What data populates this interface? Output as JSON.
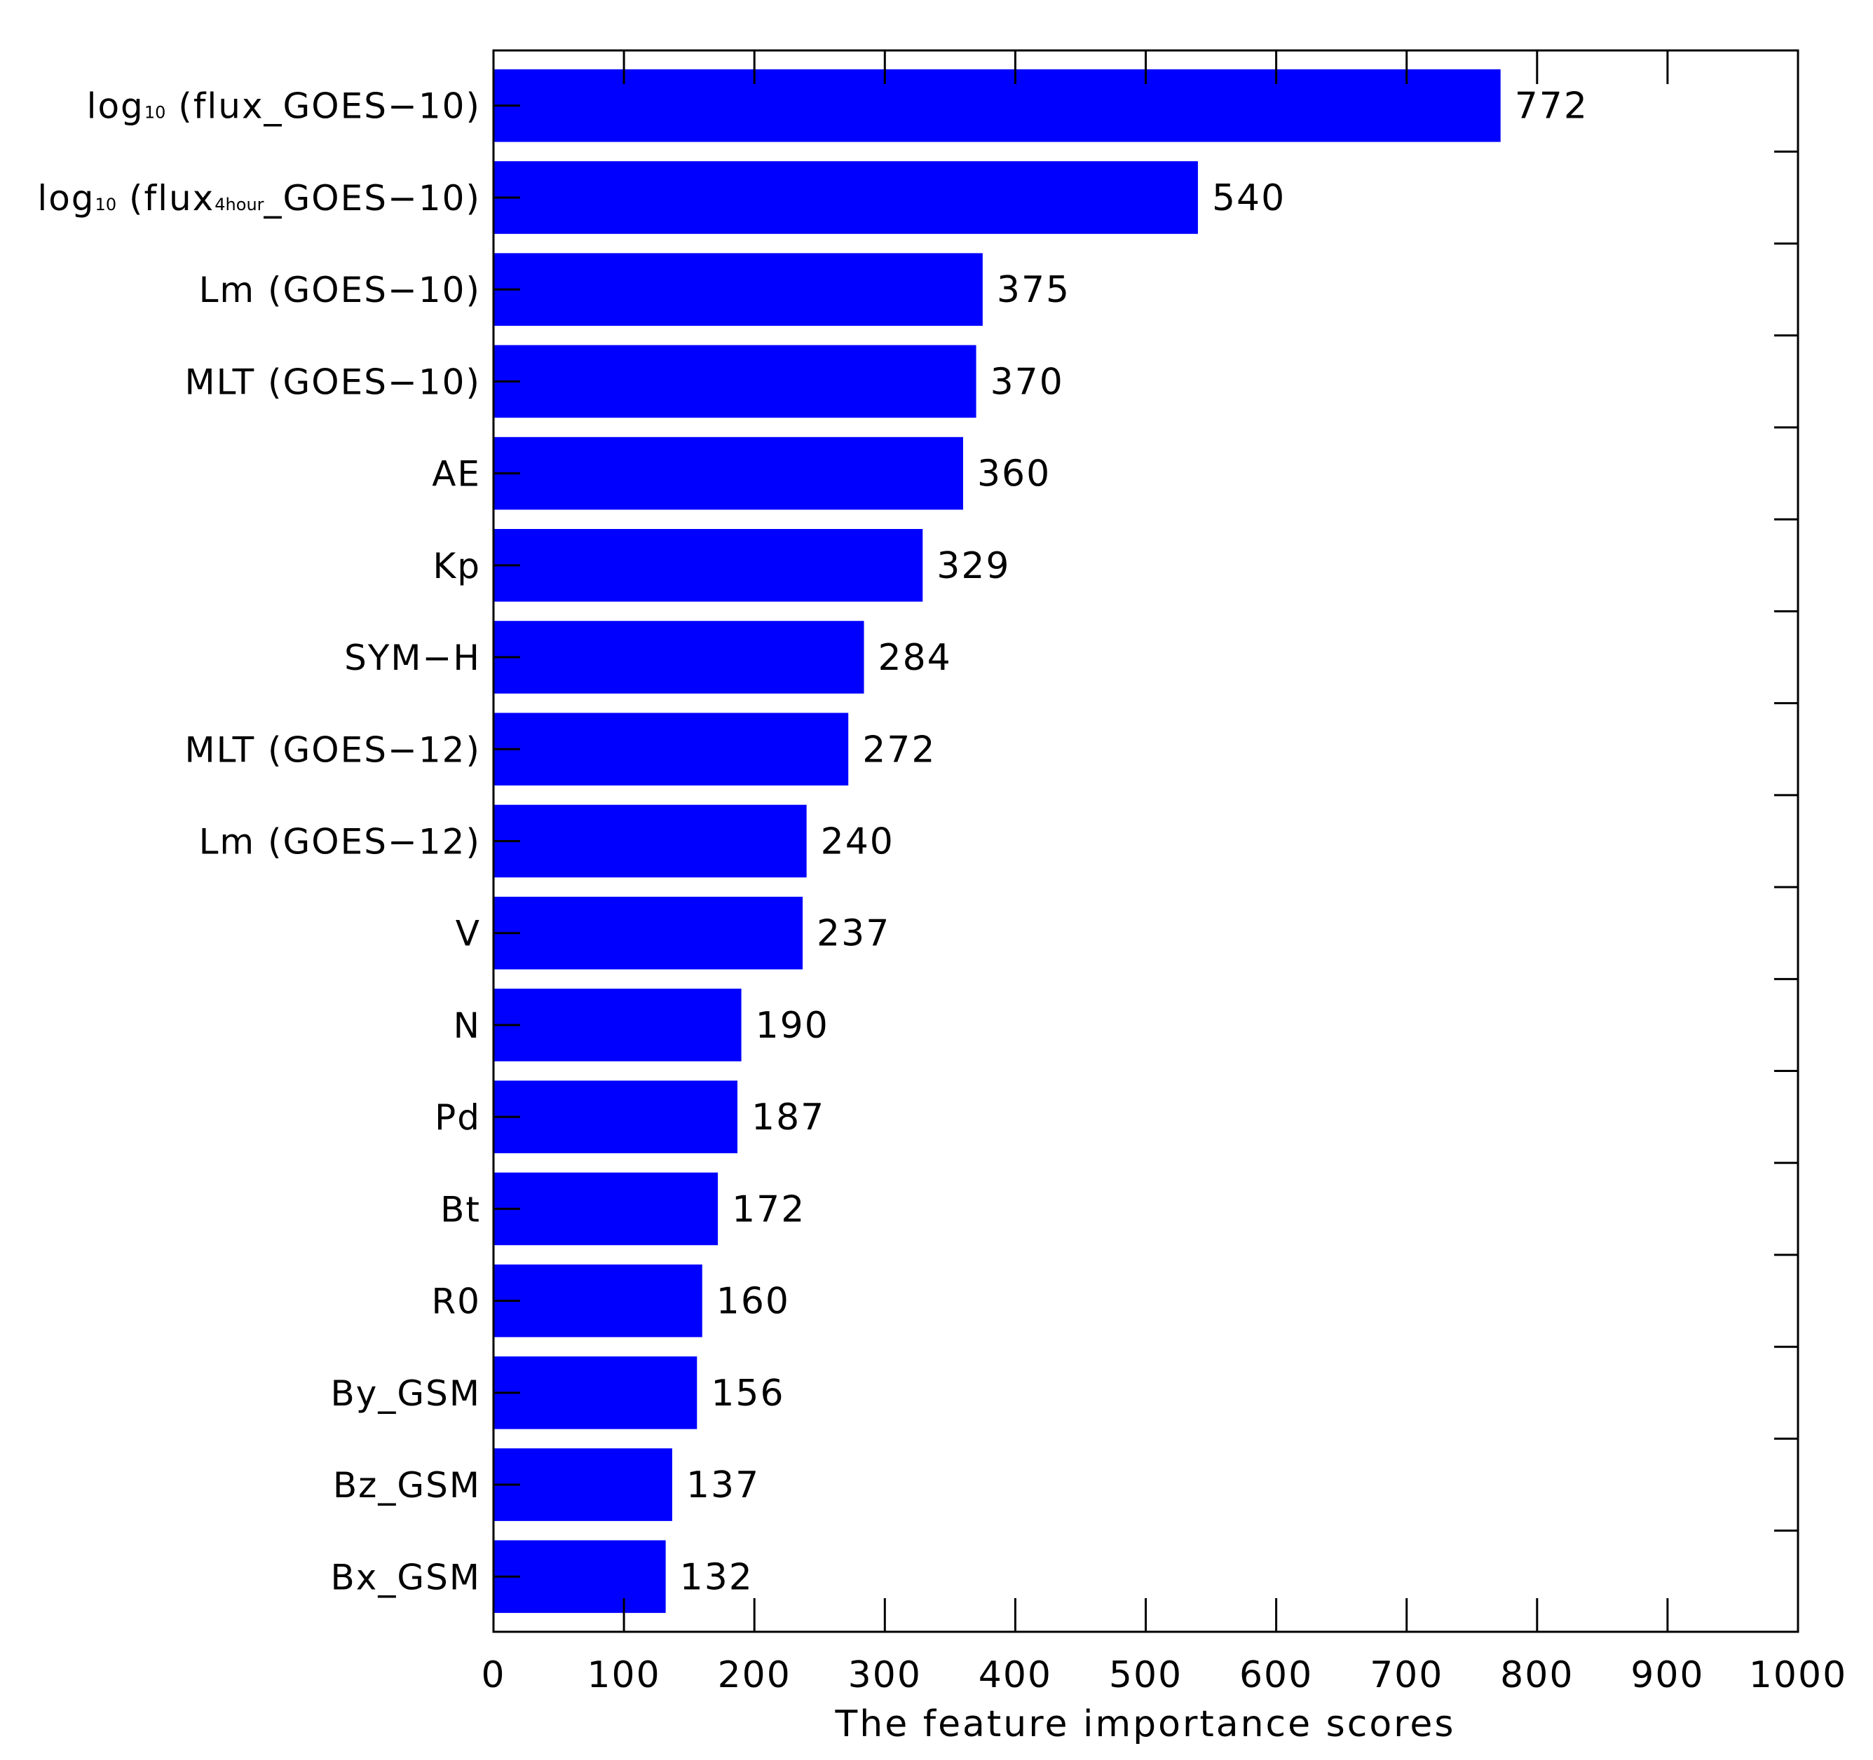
{
  "chart_data": {
    "type": "bar",
    "orientation": "horizontal",
    "title": "",
    "xlabel": "The feature importance scores",
    "ylabel": "",
    "xlim": [
      0,
      1000
    ],
    "xticks": [
      0,
      100,
      200,
      300,
      400,
      500,
      600,
      700,
      800,
      900,
      1000
    ],
    "bar_color": "#0000ff",
    "grid": false,
    "categories": [
      {
        "main": "log",
        "sub": "10",
        "rest": " (flux_GOES−10)"
      },
      {
        "main": "log",
        "sub": "10",
        "rest": " (flux",
        "sub2": "4hour",
        "rest2": "_GOES−10)"
      },
      {
        "main": "Lm (GOES−10)"
      },
      {
        "main": "MLT (GOES−10)"
      },
      {
        "main": "AE"
      },
      {
        "main": "Kp"
      },
      {
        "main": "SYM−H"
      },
      {
        "main": "MLT (GOES−12)"
      },
      {
        "main": "Lm (GOES−12)"
      },
      {
        "main": "V"
      },
      {
        "main": "N"
      },
      {
        "main": "Pd"
      },
      {
        "main": "Bt"
      },
      {
        "main": "R0"
      },
      {
        "main": "By_GSM"
      },
      {
        "main": "Bz_GSM"
      },
      {
        "main": "Bx_GSM"
      }
    ],
    "values": [
      772,
      540,
      375,
      370,
      360,
      329,
      284,
      272,
      240,
      237,
      190,
      187,
      172,
      160,
      156,
      137,
      132
    ],
    "data_labels": [
      "772",
      "540",
      "375",
      "370",
      "360",
      "329",
      "284",
      "272",
      "240",
      "237",
      "190",
      "187",
      "172",
      "160",
      "156",
      "137",
      "132"
    ]
  }
}
